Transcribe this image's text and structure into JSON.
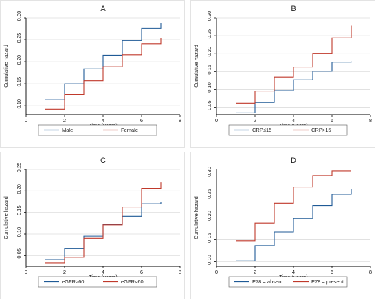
{
  "colors": {
    "series_a": "#1f5a96",
    "series_b": "#c0392b",
    "axis": "#000000",
    "grid": "#dddddd",
    "panel_bg": "#ffffff",
    "legend_border": "#555555"
  },
  "chart_data": [
    {
      "type": "line",
      "step": true,
      "title": "A",
      "xlabel": "Time (years)",
      "ylabel": "Cumulative hazard",
      "xlim": [
        0,
        8
      ],
      "xticks": [
        0,
        2,
        4,
        6,
        8
      ],
      "ylim": [
        0.08,
        0.3
      ],
      "yticks": [
        "0.10",
        "0.15",
        "0.20",
        "0.25",
        "0.30"
      ],
      "grid": true,
      "legend_position": "bottom",
      "series": [
        {
          "name": "Male",
          "x": [
            1,
            2,
            3,
            4,
            5,
            6,
            7
          ],
          "y": [
            0.114,
            0.15,
            0.184,
            0.215,
            0.248,
            0.276,
            0.289
          ]
        },
        {
          "name": "Female",
          "x": [
            1,
            2,
            3,
            4,
            5,
            6,
            7
          ],
          "y": [
            0.092,
            0.126,
            0.157,
            0.189,
            0.216,
            0.241,
            0.254
          ]
        }
      ]
    },
    {
      "type": "line",
      "step": true,
      "title": "B",
      "xlabel": "Time (years)",
      "ylabel": "Cumulative hazard",
      "xlim": [
        0,
        8
      ],
      "xticks": [
        0,
        2,
        4,
        6,
        8
      ],
      "ylim": [
        0.03,
        0.3
      ],
      "yticks": [
        "0.05",
        "0.10",
        "0.15",
        "0.20",
        "0.25",
        "0.30"
      ],
      "grid": true,
      "legend_position": "bottom",
      "series": [
        {
          "name": "CRP≤15",
          "x": [
            1,
            2,
            3,
            4,
            5,
            6,
            7
          ],
          "y": [
            0.035,
            0.064,
            0.097,
            0.127,
            0.151,
            0.176,
            0.178
          ]
        },
        {
          "name": "CRP>15",
          "x": [
            1,
            2,
            3,
            4,
            5,
            6,
            7
          ],
          "y": [
            0.062,
            0.096,
            0.135,
            0.163,
            0.201,
            0.244,
            0.278
          ]
        }
      ]
    },
    {
      "type": "line",
      "step": true,
      "title": "C",
      "xlabel": "Time (years)",
      "ylabel": "Cumulative hazard",
      "xlim": [
        0,
        8
      ],
      "xticks": [
        0,
        2,
        4,
        6,
        8
      ],
      "ylim": [
        0.025,
        0.25
      ],
      "yticks": [
        "0.05",
        "0.10",
        "0.15",
        "0.20",
        "0.25"
      ],
      "grid": true,
      "legend_position": "bottom",
      "series": [
        {
          "name": "eGFR≥60",
          "x": [
            1,
            2,
            3,
            4,
            5,
            6,
            7
          ],
          "y": [
            0.041,
            0.066,
            0.095,
            0.122,
            0.141,
            0.17,
            0.175
          ]
        },
        {
          "name": "eGFR<60",
          "x": [
            1,
            2,
            3,
            4,
            5,
            6,
            7
          ],
          "y": [
            0.033,
            0.046,
            0.09,
            0.121,
            0.163,
            0.206,
            0.221
          ]
        }
      ]
    },
    {
      "type": "line",
      "step": true,
      "title": "D",
      "xlabel": "Time (years)",
      "ylabel": "Cumulative hazard",
      "xlim": [
        0,
        8
      ],
      "xticks": [
        0,
        2,
        4,
        6,
        8
      ],
      "ylim": [
        0.09,
        0.31
      ],
      "yticks": [
        "0.10",
        "0.15",
        "0.20",
        "0.25",
        "0.30"
      ],
      "grid": true,
      "legend_position": "bottom",
      "series": [
        {
          "name": "E78 = absent",
          "x": [
            1,
            2,
            3,
            4,
            5,
            6,
            7
          ],
          "y": [
            0.102,
            0.137,
            0.168,
            0.199,
            0.228,
            0.254,
            0.266
          ]
        },
        {
          "name": "E78 = present",
          "x": [
            1,
            2,
            3,
            4,
            5,
            6,
            7
          ],
          "y": [
            0.148,
            0.188,
            0.233,
            0.27,
            0.296,
            0.307,
            0.307
          ]
        }
      ]
    }
  ]
}
